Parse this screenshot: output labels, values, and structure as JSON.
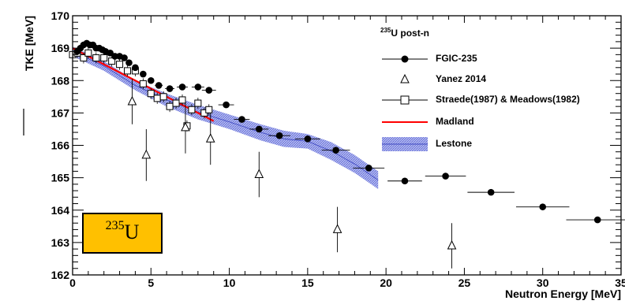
{
  "chart_data": {
    "type": "scatter",
    "title": "",
    "xlabel": "Neutron Energy [MeV]",
    "ylabel": "TKE [MeV]",
    "xlim": [
      0,
      35
    ],
    "ylim": [
      162,
      170
    ],
    "x_ticks": [
      "0",
      "5",
      "10",
      "15",
      "20",
      "25",
      "30",
      "35"
    ],
    "y_ticks": [
      "162",
      "163",
      "164",
      "165",
      "166",
      "167",
      "168",
      "169",
      "170"
    ],
    "legend_title": "U post-n",
    "legend_title_sup": "235",
    "legend_position": "top-right",
    "annotation": {
      "sup": "235",
      "text": "U"
    },
    "series": [
      {
        "name": "FGIC-235",
        "marker": "filled-circle",
        "color": "#000000",
        "points": [
          [
            0.3,
            168.9
          ],
          [
            0.5,
            169.0
          ],
          [
            0.7,
            169.1
          ],
          [
            0.9,
            169.15
          ],
          [
            1.1,
            169.1
          ],
          [
            1.3,
            169.1
          ],
          [
            1.5,
            169.0
          ],
          [
            1.7,
            169.0
          ],
          [
            1.9,
            168.95
          ],
          [
            2.1,
            168.9
          ],
          [
            2.4,
            168.85
          ],
          [
            2.7,
            168.75
          ],
          [
            3.0,
            168.75
          ],
          [
            3.3,
            168.7
          ],
          [
            3.6,
            168.55
          ],
          [
            4.0,
            168.4
          ],
          [
            4.5,
            168.2
          ],
          [
            5.0,
            168.0
          ],
          [
            5.5,
            167.85
          ],
          [
            6.2,
            167.75
          ],
          [
            7.0,
            167.8
          ],
          [
            8.0,
            167.8
          ],
          [
            8.7,
            167.7
          ],
          [
            9.8,
            167.25
          ],
          [
            10.8,
            166.8
          ],
          [
            11.9,
            166.5
          ],
          [
            13.2,
            166.3
          ],
          [
            15.0,
            166.2
          ],
          [
            16.8,
            165.85
          ],
          [
            18.9,
            165.3
          ],
          [
            21.2,
            164.9
          ],
          [
            23.8,
            165.05
          ],
          [
            26.7,
            164.55
          ],
          [
            30.0,
            164.1
          ],
          [
            33.5,
            163.7
          ]
        ],
        "xerr": [
          0.1,
          0.1,
          0.1,
          0.1,
          0.1,
          0.1,
          0.1,
          0.1,
          0.1,
          0.1,
          0.1,
          0.1,
          0.1,
          0.1,
          0.1,
          0.15,
          0.2,
          0.2,
          0.25,
          0.3,
          0.35,
          0.4,
          0.45,
          0.5,
          0.5,
          0.6,
          0.7,
          0.8,
          0.9,
          1.0,
          1.1,
          1.3,
          1.5,
          1.7,
          2.0
        ]
      },
      {
        "name": "Yanez 2014",
        "marker": "open-triangle",
        "color": "#000000",
        "points": [
          [
            3.8,
            167.35
          ],
          [
            4.7,
            165.7
          ],
          [
            7.2,
            166.55
          ],
          [
            8.8,
            166.2
          ],
          [
            11.9,
            165.1
          ],
          [
            16.9,
            163.4
          ],
          [
            24.2,
            162.9
          ]
        ],
        "yerr": [
          0.7,
          0.8,
          0.8,
          0.8,
          0.7,
          0.7,
          0.7
        ]
      },
      {
        "name": "Straede(1987) & Meadows(1982)",
        "marker": "open-square",
        "color": "#000000",
        "points": [
          [
            0.0,
            168.8
          ],
          [
            0.3,
            168.85
          ],
          [
            0.7,
            168.7
          ],
          [
            1.0,
            168.85
          ],
          [
            1.5,
            168.7
          ],
          [
            2.0,
            168.7
          ],
          [
            2.5,
            168.6
          ],
          [
            3.0,
            168.5
          ],
          [
            3.5,
            168.3
          ],
          [
            4.0,
            168.3
          ],
          [
            4.5,
            167.9
          ],
          [
            5.0,
            167.6
          ],
          [
            5.4,
            167.45
          ],
          [
            5.8,
            167.5
          ],
          [
            6.2,
            167.2
          ],
          [
            6.6,
            167.3
          ],
          [
            7.0,
            167.4
          ],
          [
            7.3,
            166.6
          ],
          [
            7.6,
            167.1
          ],
          [
            8.0,
            167.3
          ],
          [
            8.4,
            167.0
          ],
          [
            8.7,
            167.1
          ]
        ]
      },
      {
        "name": "Madland",
        "marker": "line",
        "color": "#FF0000",
        "points": [
          [
            0.0,
            169.0
          ],
          [
            9.0,
            166.75
          ]
        ]
      },
      {
        "name": "Lestone",
        "marker": "band",
        "color": "#6666DD",
        "upper": [
          [
            0.0,
            169.05
          ],
          [
            2.0,
            168.6
          ],
          [
            4.0,
            168.0
          ],
          [
            6.0,
            167.6
          ],
          [
            8.0,
            167.25
          ],
          [
            10.0,
            166.95
          ],
          [
            12.0,
            166.65
          ],
          [
            13.5,
            166.45
          ],
          [
            15.0,
            166.35
          ],
          [
            16.5,
            166.1
          ],
          [
            18.0,
            165.7
          ],
          [
            19.5,
            165.2
          ]
        ],
        "lower": [
          [
            0.0,
            168.75
          ],
          [
            2.0,
            168.3
          ],
          [
            4.0,
            167.7
          ],
          [
            6.0,
            167.2
          ],
          [
            8.0,
            166.8
          ],
          [
            10.0,
            166.5
          ],
          [
            12.0,
            166.15
          ],
          [
            13.5,
            165.95
          ],
          [
            15.0,
            165.9
          ],
          [
            16.5,
            165.55
          ],
          [
            18.0,
            165.15
          ],
          [
            19.5,
            164.65
          ]
        ]
      }
    ]
  }
}
